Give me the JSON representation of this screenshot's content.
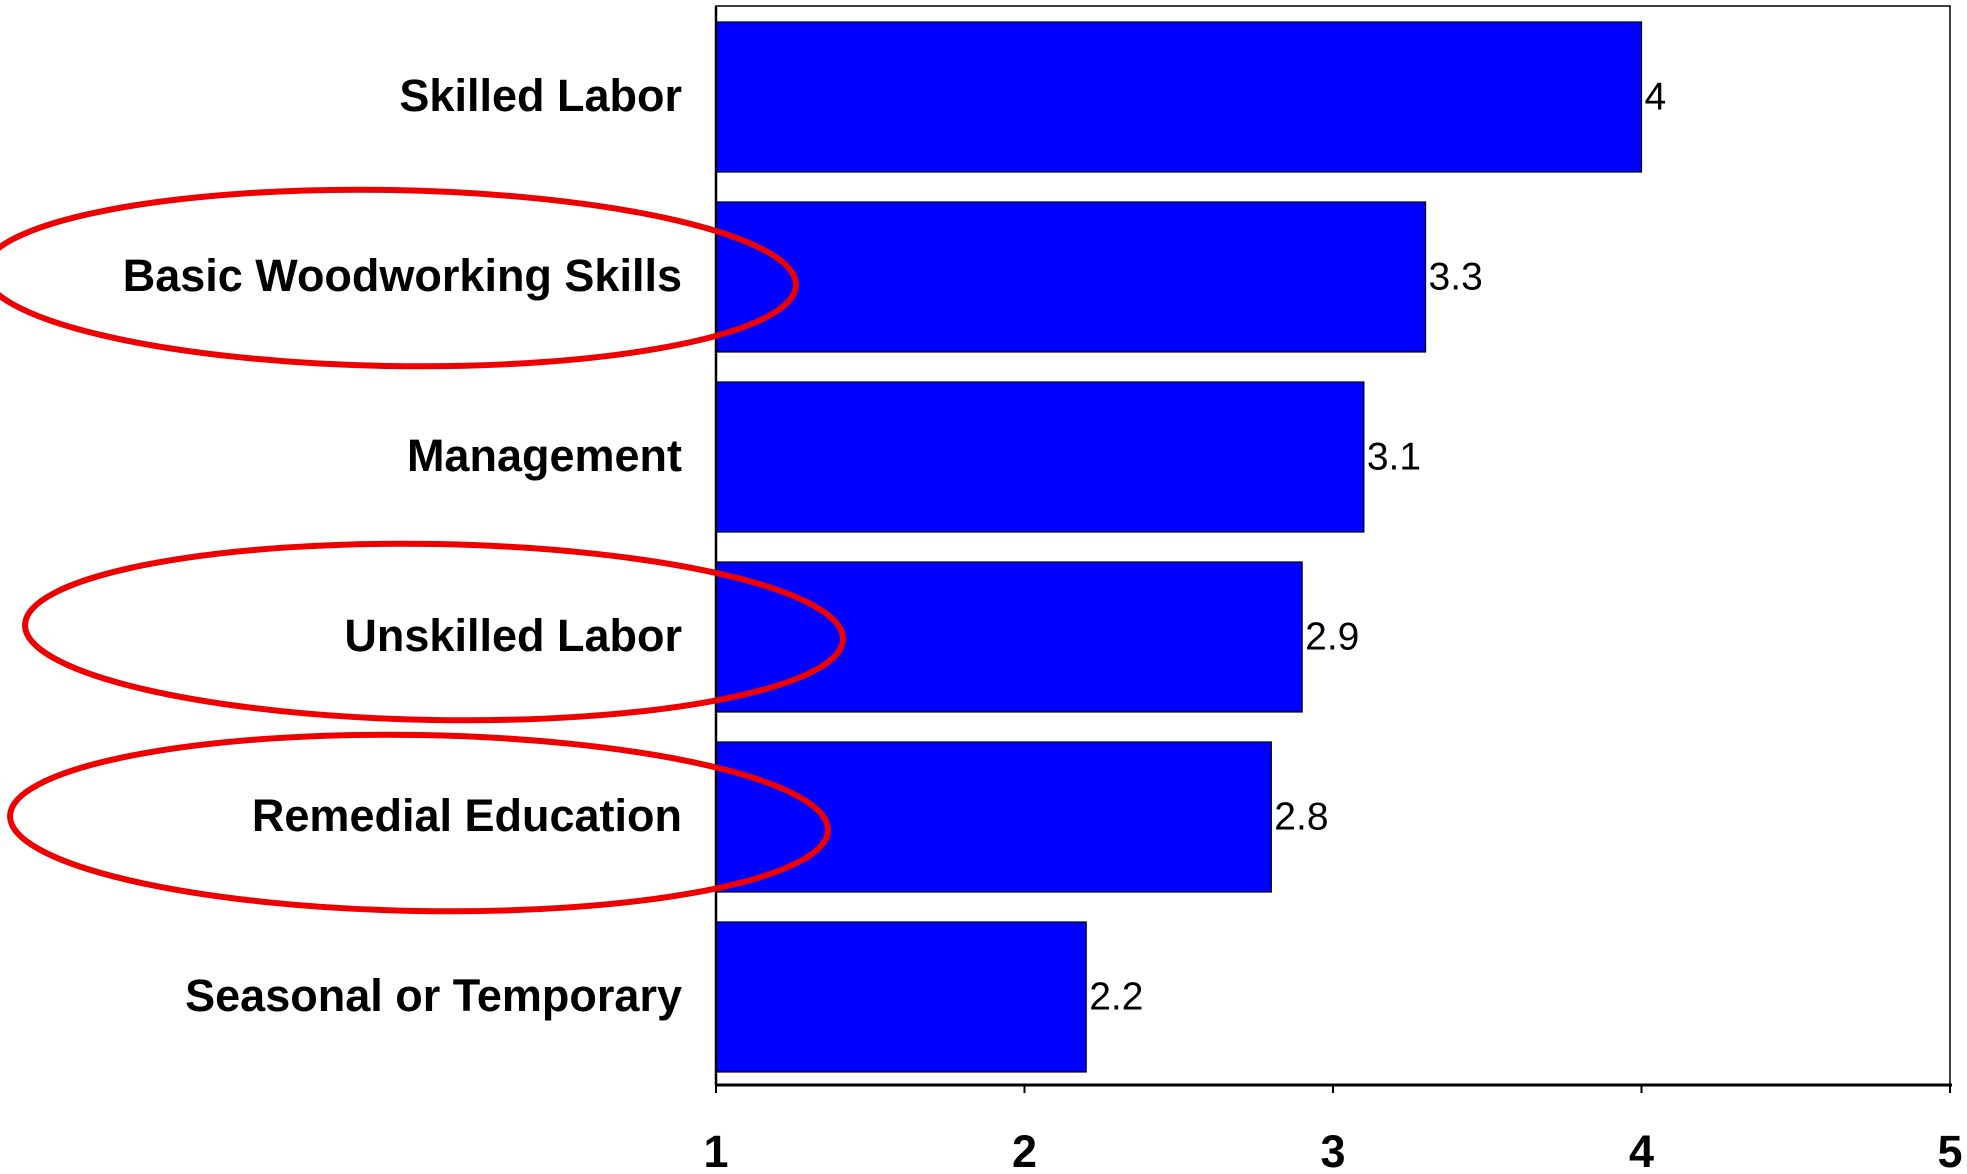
{
  "chart_data": {
    "type": "bar",
    "orientation": "horizontal",
    "categories": [
      "Skilled Labor",
      "Basic Woodworking Skills",
      "Management",
      "Unskilled Labor",
      "Remedial Education",
      "Seasonal or Temporary"
    ],
    "values": [
      4,
      3.3,
      3.1,
      2.9,
      2.8,
      2.2
    ],
    "color": "#0000ff",
    "xlim": [
      1,
      5
    ],
    "xticks": [
      1,
      2,
      3,
      4,
      5
    ],
    "grid": false
  }
}
